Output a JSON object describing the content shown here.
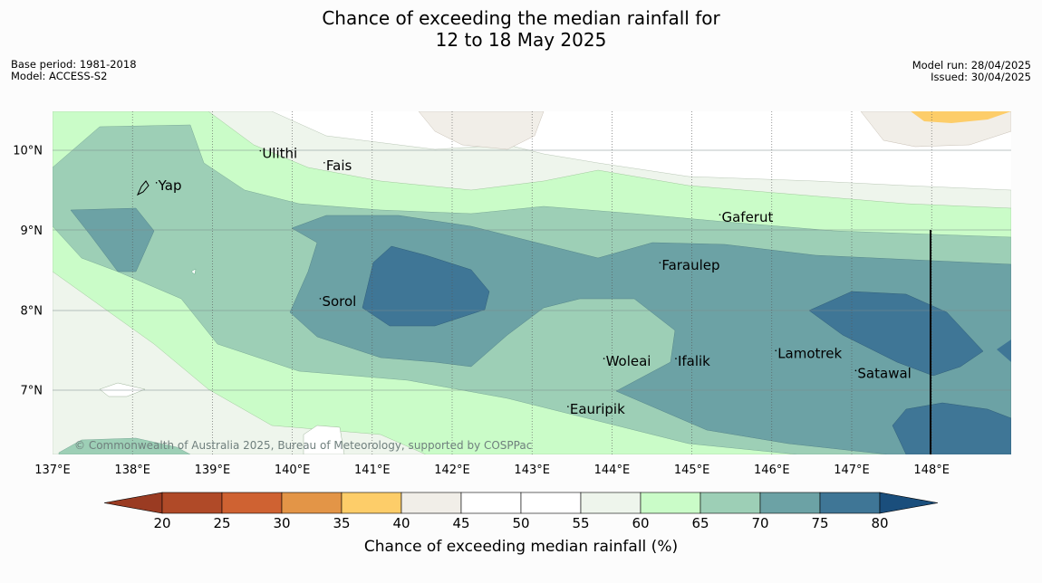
{
  "title_line1": "Chance of exceeding the median rainfall for",
  "title_line2": "12 to 18 May 2025",
  "meta_left": [
    "Base period: 1981-2018",
    "Model: ACCESS-S2"
  ],
  "meta_right": [
    "Model run: 28/04/2025",
    "Issued: 30/04/2025"
  ],
  "copyright": "© Commonwealth of Australia 2025, Bureau of Meteorology, supported by COSPPac",
  "lon_labels": [
    "137°E",
    "138°E",
    "139°E",
    "140°E",
    "141°E",
    "142°E",
    "143°E",
    "144°E",
    "145°E",
    "146°E",
    "147°E",
    "148°E"
  ],
  "lat_labels": [
    "10°N",
    "9°N",
    "8°N",
    "7°N"
  ],
  "places": [
    {
      "name": "Yap",
      "lon": 138.3,
      "lat": 9.5
    },
    {
      "name": "Ulithi",
      "lon": 139.6,
      "lat": 9.9
    },
    {
      "name": "Fais",
      "lon": 140.4,
      "lat": 9.75
    },
    {
      "name": "Gaferut",
      "lon": 145.35,
      "lat": 9.1
    },
    {
      "name": "Faraulep",
      "lon": 144.6,
      "lat": 8.5
    },
    {
      "name": "Sorol",
      "lon": 140.35,
      "lat": 8.05
    },
    {
      "name": "Woleai",
      "lon": 143.9,
      "lat": 7.3
    },
    {
      "name": "Ifalik",
      "lon": 144.8,
      "lat": 7.3
    },
    {
      "name": "Lamotrek",
      "lon": 146.05,
      "lat": 7.4
    },
    {
      "name": "Satawal",
      "lon": 147.05,
      "lat": 7.15
    },
    {
      "name": "Eauripik",
      "lon": 143.45,
      "lat": 6.7
    }
  ],
  "colorbar": {
    "label": "Chance of exceeding median rainfall (%)",
    "ticks": [
      "20",
      "25",
      "30",
      "35",
      "40",
      "45",
      "50",
      "55",
      "60",
      "65",
      "70",
      "75",
      "80"
    ],
    "colors": [
      "#b04a28",
      "#cf6232",
      "#e39547",
      "#fdcd69",
      "#f1eee8",
      "#ffffff",
      "#ffffff",
      "#eef5ec",
      "#cafcc8",
      "#9dcfb6",
      "#6ca2a5",
      "#3f7696"
    ],
    "under_color": "#9a3b22",
    "over_color": "#1a4e7c"
  }
}
